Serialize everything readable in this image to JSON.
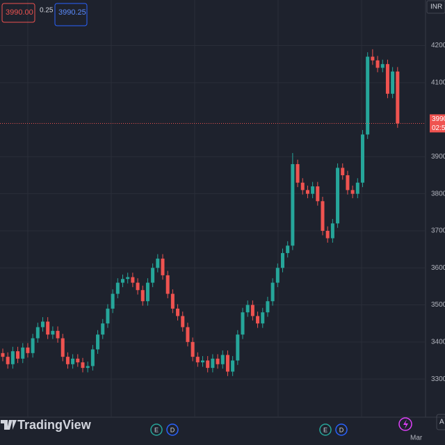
{
  "chart_data": {
    "type": "candlestick",
    "currency": "INR",
    "sell_price": "3990.00",
    "spread": "0.25",
    "buy_price": "3990.25",
    "last_price_label": "3990",
    "countdown": "02:5",
    "branding": "TradingView",
    "event_markers": [
      "E",
      "D",
      "E",
      "D"
    ],
    "x_axis_label": "Mar",
    "auto_button": "A",
    "ylim": [
      3197,
      4323
    ],
    "yticks": [
      {
        "value": 3300,
        "label": "3300"
      },
      {
        "value": 3400,
        "label": "3400"
      },
      {
        "value": 3500,
        "label": "3500"
      },
      {
        "value": 3600,
        "label": "3600"
      },
      {
        "value": 3700,
        "label": "3700"
      },
      {
        "value": 3800,
        "label": "3800"
      },
      {
        "value": 3900,
        "label": "3900"
      },
      {
        "value": 4100,
        "label": "4100."
      },
      {
        "value": 4200,
        "label": "4200."
      }
    ],
    "grid": true,
    "up_color": "#26a69a",
    "down_color": "#ef5350",
    "open": [
      3370,
      3360,
      3340,
      3375,
      3355,
      3385,
      3370,
      3410,
      3440,
      3455,
      3420,
      3430,
      3410,
      3360,
      3340,
      3355,
      3345,
      3330,
      3335,
      3380,
      3420,
      3450,
      3490,
      3530,
      3560,
      3570,
      3575,
      3560,
      3540,
      3510,
      3560,
      3600,
      3625,
      3580,
      3530,
      3490,
      3470,
      3440,
      3400,
      3360,
      3345,
      3350,
      3330,
      3355,
      3340,
      3365,
      3320,
      3350,
      3420,
      3480,
      3500,
      3470,
      3450,
      3480,
      3510,
      3560,
      3600,
      3640,
      3660,
      3880,
      3830,
      3810,
      3800,
      3820,
      3780,
      3700,
      3680,
      3720,
      3870,
      3850,
      3810,
      3800,
      3830,
      3960,
      4170,
      4160,
      4140,
      4150,
      4070,
      4130
    ],
    "high": [
      3382,
      3372,
      3387,
      3387,
      3397,
      3397,
      3422,
      3452,
      3467,
      3467,
      3442,
      3442,
      3422,
      3372,
      3367,
      3367,
      3357,
      3347,
      3392,
      3432,
      3462,
      3502,
      3542,
      3572,
      3582,
      3587,
      3587,
      3572,
      3552,
      3572,
      3612,
      3637,
      3637,
      3592,
      3542,
      3502,
      3482,
      3452,
      3412,
      3372,
      3362,
      3362,
      3367,
      3367,
      3377,
      3377,
      3362,
      3432,
      3492,
      3512,
      3512,
      3482,
      3492,
      3522,
      3572,
      3612,
      3652,
      3672,
      3910,
      3892,
      3842,
      3822,
      3832,
      3832,
      3792,
      3712,
      3732,
      3882,
      3882,
      3862,
      3822,
      3842,
      3972,
      4182,
      4190,
      4172,
      4162,
      4162,
      4142,
      4142
    ],
    "low": [
      3348,
      3328,
      3328,
      3343,
      3343,
      3358,
      3358,
      3398,
      3428,
      3408,
      3408,
      3398,
      3348,
      3328,
      3328,
      3333,
      3318,
      3318,
      3323,
      3368,
      3408,
      3438,
      3478,
      3518,
      3548,
      3558,
      3548,
      3528,
      3498,
      3498,
      3548,
      3588,
      3568,
      3518,
      3478,
      3458,
      3428,
      3388,
      3348,
      3333,
      3333,
      3318,
      3318,
      3328,
      3328,
      3308,
      3308,
      3338,
      3408,
      3468,
      3458,
      3438,
      3438,
      3468,
      3498,
      3548,
      3588,
      3628,
      3648,
      3818,
      3798,
      3788,
      3788,
      3768,
      3688,
      3668,
      3668,
      3708,
      3838,
      3798,
      3788,
      3788,
      3818,
      3948,
      4148,
      4128,
      4128,
      4058,
      4058,
      3978
    ],
    "close": [
      3360,
      3340,
      3375,
      3355,
      3385,
      3370,
      3410,
      3440,
      3455,
      3420,
      3430,
      3410,
      3360,
      3340,
      3355,
      3345,
      3330,
      3335,
      3380,
      3420,
      3450,
      3490,
      3530,
      3560,
      3570,
      3575,
      3560,
      3540,
      3510,
      3560,
      3600,
      3625,
      3580,
      3530,
      3490,
      3470,
      3440,
      3400,
      3360,
      3345,
      3350,
      3330,
      3355,
      3340,
      3365,
      3320,
      3350,
      3420,
      3480,
      3500,
      3470,
      3450,
      3480,
      3510,
      3560,
      3600,
      3640,
      3660,
      3880,
      3830,
      3810,
      3800,
      3820,
      3780,
      3700,
      3680,
      3720,
      3870,
      3850,
      3810,
      3800,
      3830,
      3960,
      4170,
      4160,
      4140,
      4150,
      4070,
      4130,
      3990
    ]
  }
}
